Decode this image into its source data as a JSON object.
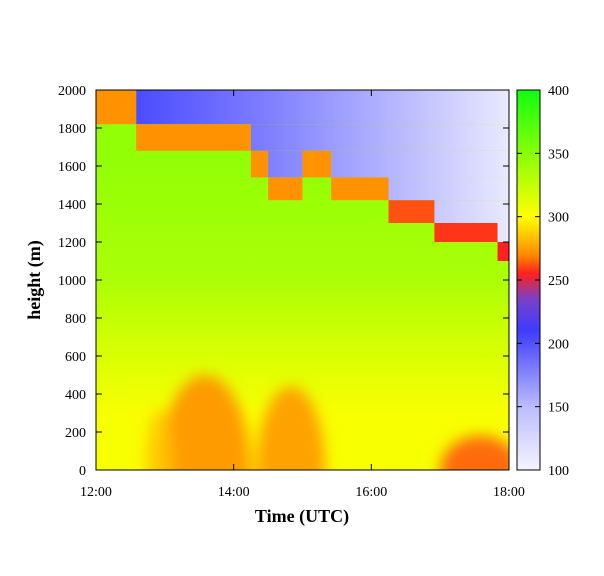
{
  "chart_data": {
    "type": "heatmap",
    "title": "",
    "xlabel": "Time (UTC)",
    "ylabel": "height (m)",
    "xlim": [
      "12:00",
      "18:00"
    ],
    "ylim": [
      0,
      2000
    ],
    "x_ticks": [
      "12:00",
      "14:00",
      "16:00",
      "18:00"
    ],
    "y_ticks": [
      "0",
      "200",
      "400",
      "600",
      "800",
      "1000",
      "1200",
      "1400",
      "1600",
      "1800",
      "2000"
    ],
    "colorbar": {
      "range": [
        100,
        400
      ],
      "ticks": [
        "100",
        "150",
        "200",
        "250",
        "300",
        "350",
        "400"
      ],
      "stops": [
        {
          "value": 100,
          "color": "#f4f4ff"
        },
        {
          "value": 150,
          "color": "#bcbcff"
        },
        {
          "value": 210,
          "color": "#3c3cff"
        },
        {
          "value": 235,
          "color": "#7a40c8"
        },
        {
          "value": 255,
          "color": "#ff2020"
        },
        {
          "value": 270,
          "color": "#ff8a00"
        },
        {
          "value": 300,
          "color": "#ffff00"
        },
        {
          "value": 400,
          "color": "#10ff10"
        }
      ]
    },
    "field": {
      "background_bands": [
        {
          "z0": 1200,
          "z1": 2000,
          "value": 345
        },
        {
          "z0": 800,
          "z1": 1200,
          "value": 335
        },
        {
          "z0": 600,
          "z1": 800,
          "value": 320
        },
        {
          "z0": 0,
          "z1": 600,
          "value": 303
        }
      ],
      "orange_cells": [
        {
          "t0": "12:00",
          "t1": "12:35",
          "z0": 1820,
          "z1": 2000,
          "value": 272
        },
        {
          "t0": "12:35",
          "t1": "14:15",
          "z0": 1680,
          "z1": 1820,
          "value": 272
        },
        {
          "t0": "14:15",
          "t1": "14:30",
          "z0": 1540,
          "z1": 1680,
          "value": 272
        },
        {
          "t0": "14:30",
          "t1": "15:00",
          "z0": 1420,
          "z1": 1540,
          "value": 272
        },
        {
          "t0": "15:00",
          "t1": "15:25",
          "z0": 1540,
          "z1": 1680,
          "value": 272
        },
        {
          "t0": "15:25",
          "t1": "16:15",
          "z0": 1420,
          "z1": 1540,
          "value": 272
        },
        {
          "t0": "16:15",
          "t1": "16:55",
          "z0": 1300,
          "z1": 1420,
          "value": 262
        },
        {
          "t0": "16:55",
          "t1": "17:50",
          "z0": 1200,
          "z1": 1300,
          "value": 258
        },
        {
          "t0": "17:50",
          "t1": "18:00",
          "z0": 1100,
          "z1": 1200,
          "value": 255
        }
      ],
      "blue_cells": [
        {
          "t0": "12:35",
          "t1": "18:00",
          "z0": 1820,
          "z1": 2000
        },
        {
          "t0": "14:15",
          "t1": "18:00",
          "z0": 1680,
          "z1": 1820
        },
        {
          "t0": "14:30",
          "t1": "15:00",
          "z0": 1540,
          "z1": 1680
        },
        {
          "t0": "15:25",
          "t1": "18:00",
          "z0": 1540,
          "z1": 1680
        },
        {
          "t0": "16:15",
          "t1": "18:00",
          "z0": 1420,
          "z1": 1540
        },
        {
          "t0": "16:55",
          "t1": "18:00",
          "z0": 1300,
          "z1": 1420
        },
        {
          "t0": "17:50",
          "t1": "18:00",
          "z0": 1200,
          "z1": 1300
        }
      ],
      "blue_value_start": 210,
      "blue_value_end": 110,
      "warm_plumes": [
        {
          "t_center": "13:35",
          "t_width": "0:40",
          "z_top": 500,
          "value": 270
        },
        {
          "t_center": "14:50",
          "t_width": "0:30",
          "z_top": 440,
          "value": 272
        },
        {
          "t_center": "12:55",
          "t_width": "0:12",
          "z_top": 320,
          "value": 285
        },
        {
          "t_center": "17:35",
          "t_width": "0:35",
          "z_top": 180,
          "value": 262
        }
      ]
    }
  }
}
